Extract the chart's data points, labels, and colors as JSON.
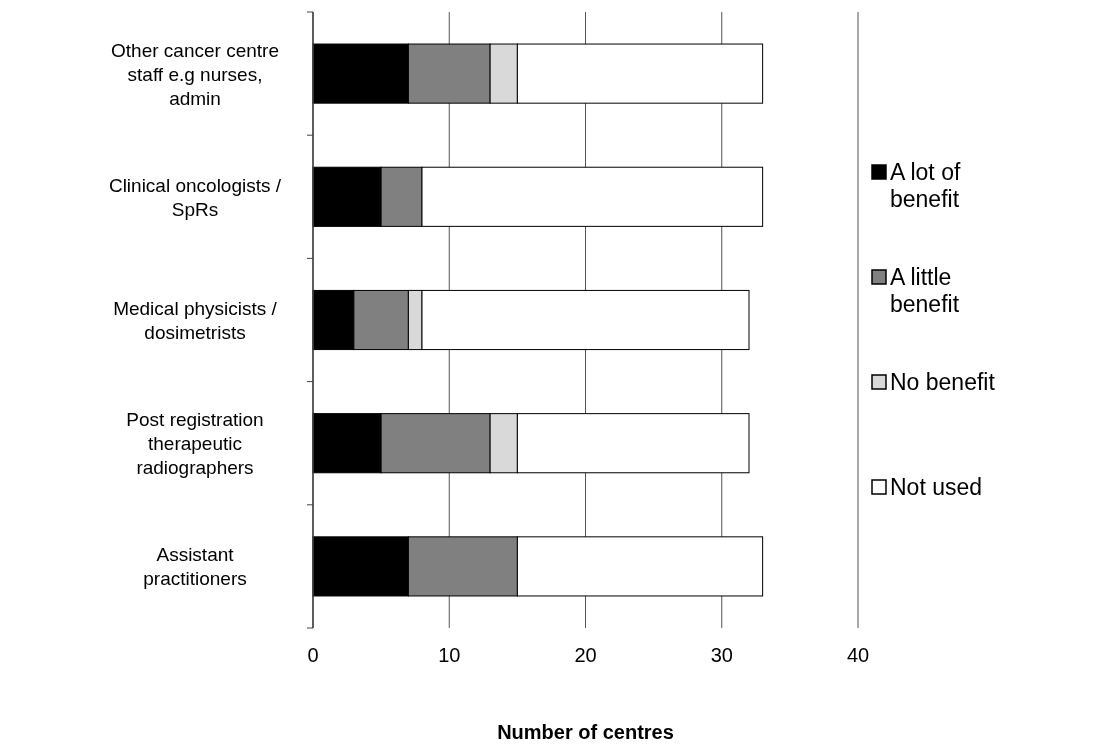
{
  "chart_data": {
    "type": "bar",
    "orientation": "horizontal",
    "stacked": true,
    "categories": [
      "Other cancer centre staff e.g nurses, admin",
      "Clinical oncologists / SpRs",
      "Medical physicists / dosimetrists",
      "Post registration therapeutic radiographers",
      "Assistant practitioners"
    ],
    "series": [
      {
        "name": "A lot of benefit",
        "color": "#000000",
        "values": [
          7,
          5,
          3,
          5,
          7
        ]
      },
      {
        "name": "A little benefit",
        "color": "#808080",
        "values": [
          6,
          3,
          4,
          8,
          8
        ]
      },
      {
        "name": "No benefit",
        "color": "#d9d9d9",
        "values": [
          2,
          0,
          1,
          2,
          0
        ]
      },
      {
        "name": "Not used",
        "color": "#ffffff",
        "values": [
          18,
          25,
          24,
          17,
          18
        ]
      }
    ],
    "xlim": [
      0,
      40
    ],
    "xticks": [
      0,
      10,
      20,
      30,
      40
    ],
    "xlabel": "Number of centres",
    "grid": "x",
    "legend": "right"
  }
}
